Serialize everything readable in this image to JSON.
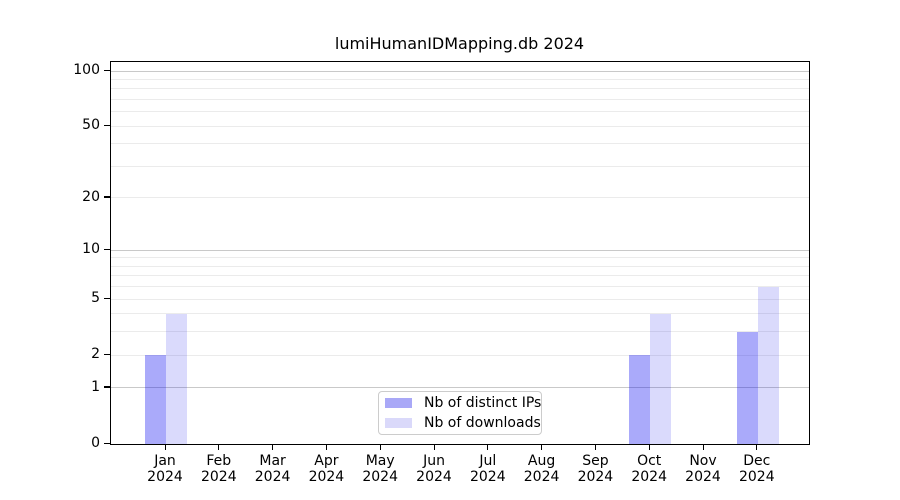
{
  "chart_data": {
    "type": "bar",
    "title": "lumiHumanIDMapping.db 2024",
    "categories": [
      "Jan",
      "Feb",
      "Mar",
      "Apr",
      "May",
      "Jun",
      "Jul",
      "Aug",
      "Sep",
      "Oct",
      "Nov",
      "Dec"
    ],
    "x_sublabel": "2024",
    "series": [
      {
        "name": "Nb of distinct IPs",
        "color": "#a9a8f7",
        "fill_rgba": "rgba(5,5,240,0.34)",
        "values": [
          2,
          0,
          0,
          0,
          0,
          0,
          0,
          0,
          0,
          2,
          0,
          3
        ]
      },
      {
        "name": "Nb of downloads",
        "color": "#dad9fa",
        "fill_rgba": "rgba(10,10,235,0.15)",
        "values": [
          4,
          0,
          0,
          0,
          0,
          0,
          0,
          0,
          0,
          4,
          0,
          6
        ]
      }
    ],
    "y_axis": {
      "scale": "log1p",
      "tick_labels": [
        "0",
        "1",
        "2",
        "5",
        "10",
        "20",
        "50",
        "100"
      ],
      "tick_values": [
        0,
        1,
        2,
        5,
        10,
        20,
        50,
        100
      ],
      "major_grid_values": [
        1,
        10,
        100
      ],
      "minor_grid_values": [
        2,
        3,
        4,
        5,
        6,
        7,
        8,
        9,
        20,
        30,
        40,
        50,
        60,
        70,
        80,
        90
      ],
      "ylim": [
        0,
        112
      ]
    },
    "grid": {
      "minor_color": "#ebebeb",
      "major_color": "#c9c9c9"
    },
    "legend_position": "lower center",
    "axis_color": "#000000",
    "background_color": "#ffffff"
  }
}
